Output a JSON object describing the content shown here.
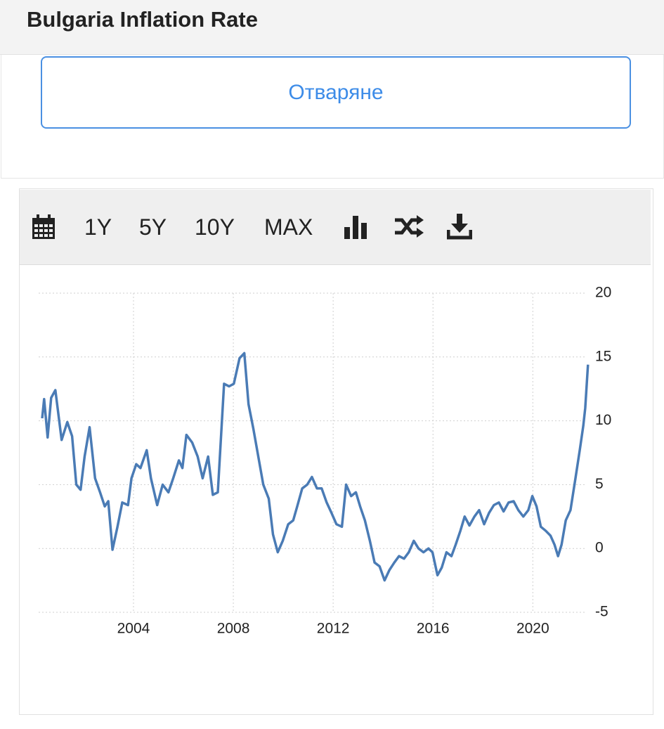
{
  "header": {
    "title": "Bulgaria Inflation Rate"
  },
  "button": {
    "label": "Отваряне"
  },
  "toolbar": {
    "ranges": [
      "1Y",
      "5Y",
      "10Y",
      "MAX"
    ]
  },
  "chart_data": {
    "type": "line",
    "color": "#4a7bb5",
    "grid": true,
    "xlim": [
      2000.2,
      2022.3
    ],
    "xticks": [
      2004,
      2008,
      2012,
      2016,
      2020
    ],
    "ylim": [
      -5,
      20
    ],
    "yticks": [
      20,
      15,
      10,
      5,
      0,
      -5
    ],
    "x": [
      2000.34,
      2000.42,
      2000.56,
      2000.7,
      2000.87,
      2001.12,
      2001.35,
      2001.54,
      2001.71,
      2001.88,
      2002.04,
      2002.24,
      2002.46,
      2002.66,
      2002.85,
      2002.99,
      2003.16,
      2003.36,
      2003.55,
      2003.78,
      2003.92,
      2004.11,
      2004.28,
      2004.53,
      2004.7,
      2004.95,
      2005.17,
      2005.4,
      2005.59,
      2005.82,
      2005.96,
      2006.12,
      2006.35,
      2006.57,
      2006.77,
      2006.99,
      2007.18,
      2007.38,
      2007.63,
      2007.83,
      2008.02,
      2008.25,
      2008.44,
      2008.61,
      2008.8,
      2009.0,
      2009.2,
      2009.42,
      2009.59,
      2009.78,
      2009.98,
      2010.2,
      2010.4,
      2010.56,
      2010.76,
      2010.96,
      2011.15,
      2011.35,
      2011.54,
      2011.74,
      2011.93,
      2012.13,
      2012.35,
      2012.52,
      2012.72,
      2012.91,
      2013.08,
      2013.27,
      2013.47,
      2013.66,
      2013.86,
      2014.06,
      2014.25,
      2014.45,
      2014.64,
      2014.84,
      2015.03,
      2015.23,
      2015.42,
      2015.62,
      2015.82,
      2015.98,
      2016.18,
      2016.35,
      2016.54,
      2016.74,
      2016.91,
      2017.1,
      2017.27,
      2017.46,
      2017.66,
      2017.85,
      2018.05,
      2018.25,
      2018.44,
      2018.64,
      2018.83,
      2019.03,
      2019.23,
      2019.42,
      2019.62,
      2019.82,
      2019.98,
      2020.15,
      2020.32,
      2020.51,
      2020.71,
      2020.87,
      2021.01,
      2021.15,
      2021.32,
      2021.51,
      2021.71,
      2021.88,
      2022.02,
      2022.1,
      2022.21
    ],
    "values": [
      10.2,
      11.7,
      8.7,
      11.8,
      12.4,
      8.5,
      9.9,
      8.8,
      5.0,
      4.6,
      7.2,
      9.5,
      5.5,
      4.4,
      3.3,
      3.7,
      -0.1,
      1.7,
      3.6,
      3.4,
      5.5,
      6.6,
      6.3,
      7.7,
      5.5,
      3.4,
      5.0,
      4.4,
      5.5,
      6.9,
      6.3,
      8.9,
      8.3,
      7.2,
      5.5,
      7.2,
      4.2,
      4.4,
      12.9,
      12.7,
      12.9,
      14.9,
      15.3,
      11.3,
      9.4,
      7.2,
      5.0,
      3.9,
      1.1,
      -0.3,
      0.6,
      1.9,
      2.2,
      3.3,
      4.7,
      5.0,
      5.6,
      4.7,
      4.7,
      3.6,
      2.8,
      1.9,
      1.7,
      5.0,
      4.1,
      4.4,
      3.3,
      2.2,
      0.6,
      -1.1,
      -1.4,
      -2.5,
      -1.7,
      -1.1,
      -0.6,
      -0.8,
      -0.3,
      0.6,
      0.0,
      -0.3,
      0.0,
      -0.3,
      -2.1,
      -1.5,
      -0.3,
      -0.6,
      0.3,
      1.4,
      2.5,
      1.8,
      2.5,
      3.0,
      1.9,
      2.8,
      3.4,
      3.6,
      2.9,
      3.6,
      3.7,
      3.0,
      2.5,
      3.0,
      4.1,
      3.3,
      1.7,
      1.4,
      1.0,
      0.3,
      -0.6,
      0.3,
      2.2,
      3.0,
      5.5,
      7.7,
      9.6,
      11.0,
      14.4
    ]
  }
}
